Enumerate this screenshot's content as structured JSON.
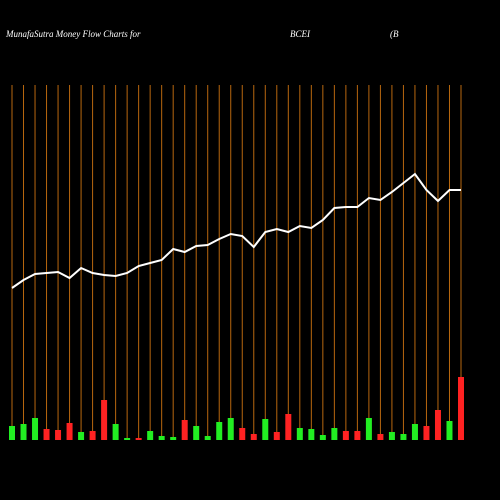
{
  "chart_data": {
    "type": "money-flow",
    "title": "MunafaSutra  Money Flow  Charts for",
    "symbol": "BCEI",
    "name": "(B",
    "grid": true,
    "grid_color": "#b8670f",
    "ylim": [
      0,
      440
    ],
    "line": {
      "color": "#ffffff",
      "values": [
        152,
        160,
        166,
        167,
        168,
        162,
        172,
        167,
        165,
        164,
        167,
        174,
        177,
        180,
        191,
        188,
        194,
        195,
        201,
        206,
        204,
        193,
        208,
        211,
        208,
        214,
        212,
        220,
        232,
        233,
        233,
        242,
        240,
        248,
        257,
        266,
        250,
        239,
        250,
        250
      ]
    },
    "bars": {
      "values": [
        14,
        16,
        22,
        11,
        10,
        17,
        8,
        9,
        40,
        16,
        2,
        2,
        9,
        4,
        3,
        20,
        14,
        4,
        18,
        22,
        12,
        6,
        21,
        8,
        26,
        12,
        11,
        5,
        12,
        9,
        9,
        22,
        6,
        8,
        6,
        16,
        14,
        30,
        19,
        63
      ],
      "colors": [
        "#22ee22",
        "#22ee22",
        "#22ee22",
        "#ff2222",
        "#ff2222",
        "#ff2222",
        "#22ee22",
        "#ff2222",
        "#ff2222",
        "#22ee22",
        "#22ee22",
        "#ff2222",
        "#22ee22",
        "#22ee22",
        "#22ee22",
        "#ff2222",
        "#22ee22",
        "#22ee22",
        "#22ee22",
        "#22ee22",
        "#ff2222",
        "#ff2222",
        "#22ee22",
        "#ff2222",
        "#ff2222",
        "#22ee22",
        "#22ee22",
        "#22ee22",
        "#22ee22",
        "#ff2222",
        "#ff2222",
        "#22ee22",
        "#ff2222",
        "#22ee22",
        "#22ee22",
        "#22ee22",
        "#ff2222",
        "#ff2222",
        "#22ee22",
        "#ff2222"
      ]
    }
  }
}
